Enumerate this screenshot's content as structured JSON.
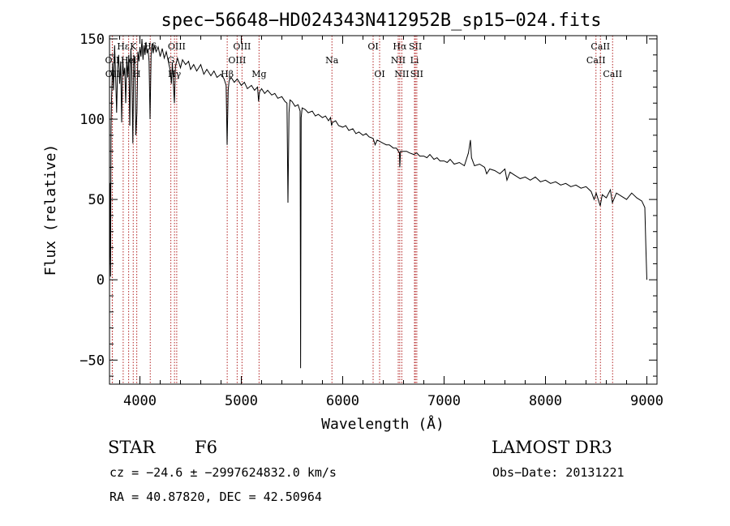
{
  "chart_data": {
    "type": "line",
    "title": "spec−56648−HD024343N412952B_sp15−024.fits",
    "xlabel": "Wavelength (Å)",
    "ylabel": "Flux (relative)",
    "xlim": [
      3700,
      9100
    ],
    "ylim": [
      -65,
      152
    ],
    "xticks": [
      4000,
      5000,
      6000,
      7000,
      8000,
      9000
    ],
    "yticks": [
      -50,
      0,
      50,
      100,
      150
    ],
    "ytick_labels": [
      "−50",
      "0",
      "50",
      "100",
      "150"
    ],
    "series": [
      {
        "name": "flux",
        "points": [
          [
            3700,
            0
          ],
          [
            3705,
            60
          ],
          [
            3710,
            2
          ],
          [
            3715,
            95
          ],
          [
            3720,
            112
          ],
          [
            3730,
            135
          ],
          [
            3740,
            118
          ],
          [
            3750,
            146
          ],
          [
            3760,
            128
          ],
          [
            3770,
            104
          ],
          [
            3780,
            132
          ],
          [
            3790,
            140
          ],
          [
            3800,
            122
          ],
          [
            3810,
            136
          ],
          [
            3820,
            98
          ],
          [
            3830,
            138
          ],
          [
            3840,
            127
          ],
          [
            3850,
            132
          ],
          [
            3860,
            110
          ],
          [
            3870,
            138
          ],
          [
            3880,
            126
          ],
          [
            3890,
            140
          ],
          [
            3900,
            96
          ],
          [
            3910,
            144
          ],
          [
            3920,
            131
          ],
          [
            3930,
            85
          ],
          [
            3940,
            140
          ],
          [
            3950,
            133
          ],
          [
            3960,
            90
          ],
          [
            3970,
            104
          ],
          [
            3980,
            142
          ],
          [
            3990,
            136
          ],
          [
            4000,
            145
          ],
          [
            4010,
            139
          ],
          [
            4020,
            150
          ],
          [
            4030,
            137
          ],
          [
            4040,
            146
          ],
          [
            4050,
            140
          ],
          [
            4060,
            148
          ],
          [
            4070,
            141
          ],
          [
            4080,
            144
          ],
          [
            4090,
            136
          ],
          [
            4100,
            100
          ],
          [
            4110,
            140
          ],
          [
            4120,
            147
          ],
          [
            4130,
            141
          ],
          [
            4140,
            146
          ],
          [
            4160,
            142
          ],
          [
            4180,
            145
          ],
          [
            4200,
            139
          ],
          [
            4220,
            144
          ],
          [
            4240,
            138
          ],
          [
            4260,
            142
          ],
          [
            4280,
            136
          ],
          [
            4300,
            130
          ],
          [
            4310,
            122
          ],
          [
            4320,
            135
          ],
          [
            4340,
            110
          ],
          [
            4350,
            133
          ],
          [
            4370,
            138
          ],
          [
            4400,
            132
          ],
          [
            4420,
            137
          ],
          [
            4450,
            134
          ],
          [
            4480,
            136
          ],
          [
            4500,
            131
          ],
          [
            4530,
            134
          ],
          [
            4560,
            130
          ],
          [
            4600,
            134
          ],
          [
            4630,
            128
          ],
          [
            4660,
            131
          ],
          [
            4700,
            127
          ],
          [
            4730,
            130
          ],
          [
            4760,
            126
          ],
          [
            4800,
            128
          ],
          [
            4830,
            125
          ],
          [
            4850,
            121
          ],
          [
            4860,
            84
          ],
          [
            4870,
            118
          ],
          [
            4880,
            124
          ],
          [
            4900,
            126
          ],
          [
            4930,
            123
          ],
          [
            4960,
            125
          ],
          [
            5000,
            121
          ],
          [
            5030,
            123
          ],
          [
            5060,
            119
          ],
          [
            5100,
            121
          ],
          [
            5130,
            118
          ],
          [
            5160,
            120
          ],
          [
            5170,
            111
          ],
          [
            5180,
            117
          ],
          [
            5200,
            119
          ],
          [
            5230,
            116
          ],
          [
            5260,
            118
          ],
          [
            5300,
            115
          ],
          [
            5330,
            116
          ],
          [
            5360,
            113
          ],
          [
            5400,
            114
          ],
          [
            5430,
            111
          ],
          [
            5450,
            110
          ],
          [
            5460,
            48
          ],
          [
            5470,
            104
          ],
          [
            5480,
            112
          ],
          [
            5500,
            111
          ],
          [
            5530,
            108
          ],
          [
            5560,
            109
          ],
          [
            5580,
            105
          ],
          [
            5585,
            -55
          ],
          [
            5590,
            101
          ],
          [
            5600,
            107
          ],
          [
            5630,
            106
          ],
          [
            5660,
            104
          ],
          [
            5700,
            105
          ],
          [
            5730,
            102
          ],
          [
            5760,
            103
          ],
          [
            5800,
            101
          ],
          [
            5830,
            102
          ],
          [
            5860,
            99
          ],
          [
            5880,
            101
          ],
          [
            5890,
            96
          ],
          [
            5900,
            98
          ],
          [
            5930,
            99
          ],
          [
            5960,
            96
          ],
          [
            6000,
            95
          ],
          [
            6030,
            96
          ],
          [
            6060,
            93
          ],
          [
            6100,
            94
          ],
          [
            6130,
            91
          ],
          [
            6160,
            92
          ],
          [
            6200,
            90
          ],
          [
            6230,
            91
          ],
          [
            6260,
            89
          ],
          [
            6300,
            88
          ],
          [
            6320,
            84
          ],
          [
            6340,
            87
          ],
          [
            6370,
            86
          ],
          [
            6400,
            85
          ],
          [
            6430,
            84
          ],
          [
            6460,
            84
          ],
          [
            6500,
            82
          ],
          [
            6530,
            82
          ],
          [
            6560,
            79
          ],
          [
            6563,
            70
          ],
          [
            6570,
            80
          ],
          [
            6600,
            80
          ],
          [
            6630,
            80
          ],
          [
            6660,
            79
          ],
          [
            6700,
            78
          ],
          [
            6730,
            79
          ],
          [
            6760,
            77
          ],
          [
            6800,
            77
          ],
          [
            6830,
            76
          ],
          [
            6860,
            78
          ],
          [
            6900,
            75
          ],
          [
            6930,
            76
          ],
          [
            6960,
            74
          ],
          [
            7000,
            74
          ],
          [
            7030,
            73
          ],
          [
            7060,
            75
          ],
          [
            7100,
            72
          ],
          [
            7150,
            73
          ],
          [
            7200,
            71
          ],
          [
            7240,
            79
          ],
          [
            7260,
            87
          ],
          [
            7270,
            76
          ],
          [
            7300,
            71
          ],
          [
            7350,
            72
          ],
          [
            7400,
            70
          ],
          [
            7420,
            66
          ],
          [
            7450,
            69
          ],
          [
            7500,
            68
          ],
          [
            7550,
            66
          ],
          [
            7600,
            69
          ],
          [
            7620,
            62
          ],
          [
            7650,
            67
          ],
          [
            7700,
            65
          ],
          [
            7750,
            63
          ],
          [
            7800,
            64
          ],
          [
            7850,
            62
          ],
          [
            7900,
            64
          ],
          [
            7950,
            61
          ],
          [
            8000,
            62
          ],
          [
            8050,
            60
          ],
          [
            8100,
            61
          ],
          [
            8150,
            59
          ],
          [
            8200,
            60
          ],
          [
            8250,
            58
          ],
          [
            8300,
            59
          ],
          [
            8350,
            57
          ],
          [
            8400,
            58
          ],
          [
            8450,
            55
          ],
          [
            8480,
            50
          ],
          [
            8500,
            54
          ],
          [
            8540,
            46
          ],
          [
            8560,
            53
          ],
          [
            8600,
            51
          ],
          [
            8640,
            56
          ],
          [
            8660,
            48
          ],
          [
            8700,
            54
          ],
          [
            8750,
            52
          ],
          [
            8800,
            50
          ],
          [
            8850,
            54
          ],
          [
            8900,
            51
          ],
          [
            8950,
            49
          ],
          [
            8980,
            45
          ],
          [
            8990,
            20
          ],
          [
            9000,
            0
          ]
        ]
      }
    ],
    "line_markers": [
      {
        "label": "Hε",
        "x": 3835,
        "row": 1
      },
      {
        "label": "OII",
        "x": 3727,
        "row": 2
      },
      {
        "label": "OII",
        "x": 3729,
        "row": 3
      },
      {
        "label": "K",
        "x": 3934,
        "row": 1
      },
      {
        "label": "Hel",
        "x": 3889,
        "row": 2
      },
      {
        "label": "H",
        "x": 3969,
        "row": 3
      },
      {
        "label": "Hδ",
        "x": 4102,
        "row": 1
      },
      {
        "label": "G",
        "x": 4305,
        "row": 2
      },
      {
        "label": "OIII",
        "x": 4363,
        "row": 1
      },
      {
        "label": "Hγ",
        "x": 4341,
        "row": 3
      },
      {
        "label": "Hβ",
        "x": 4861,
        "row": 3
      },
      {
        "label": "OIII",
        "x": 4959,
        "row": 2
      },
      {
        "label": "OIII",
        "x": 5007,
        "row": 1
      },
      {
        "label": "Mg",
        "x": 5175,
        "row": 3
      },
      {
        "label": "Na",
        "x": 5894,
        "row": 2
      },
      {
        "label": "OI",
        "x": 6300,
        "row": 1
      },
      {
        "label": "OI",
        "x": 6364,
        "row": 3
      },
      {
        "label": "NII",
        "x": 6548,
        "row": 2
      },
      {
        "label": "Hα",
        "x": 6563,
        "row": 1
      },
      {
        "label": "NII",
        "x": 6583,
        "row": 3
      },
      {
        "label": "SII",
        "x": 6717,
        "row": 1
      },
      {
        "label": "Li",
        "x": 6708,
        "row": 2
      },
      {
        "label": "SII",
        "x": 6731,
        "row": 3
      },
      {
        "label": "CaII",
        "x": 8498,
        "row": 2
      },
      {
        "label": "CaII",
        "x": 8542,
        "row": 1
      },
      {
        "label": "CaII",
        "x": 8662,
        "row": 3
      }
    ]
  },
  "info": {
    "object_type": "STAR",
    "subclass": "F6",
    "survey": "LAMOST DR3",
    "redshift": "cz = −24.6 ± −2997624832.0 km/s",
    "obs_date": "Obs−Date: 20131221",
    "coords": "RA =  40.87820, DEC =  42.50964"
  },
  "colors": {
    "axis": "#000000",
    "spectrum": "#000000",
    "marker_line": "#b22222"
  }
}
